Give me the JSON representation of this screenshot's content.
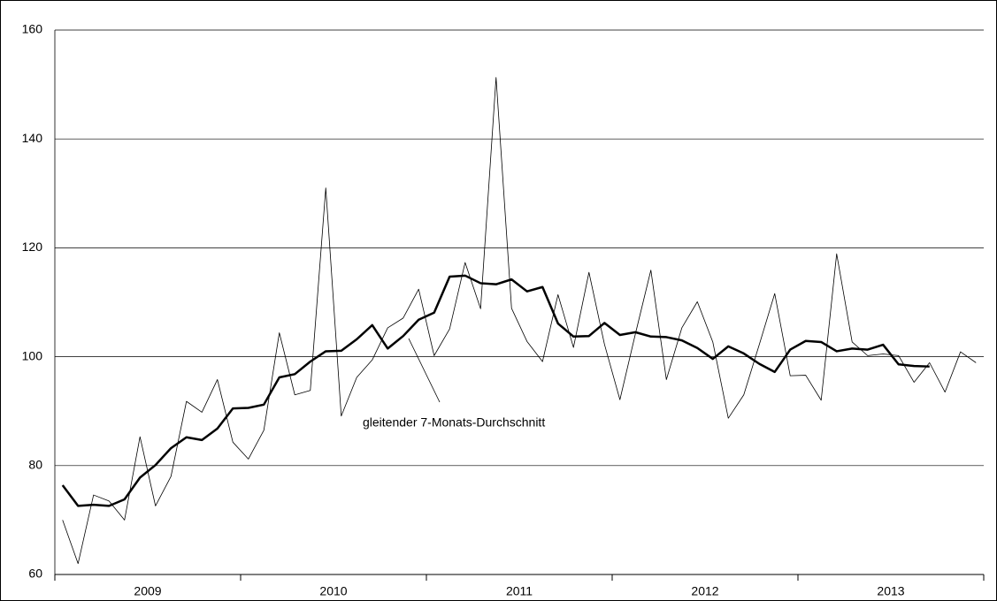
{
  "chart_data": {
    "type": "line",
    "categories": [
      "2009",
      null,
      null,
      null,
      null,
      null,
      null,
      null,
      null,
      null,
      null,
      null,
      "2010",
      null,
      null,
      null,
      null,
      null,
      null,
      null,
      null,
      null,
      null,
      null,
      "2011",
      null,
      null,
      null,
      null,
      null,
      null,
      null,
      null,
      null,
      null,
      null,
      "2012",
      null,
      null,
      null,
      null,
      null,
      null,
      null,
      null,
      null,
      null,
      null,
      "2013",
      null,
      null,
      null,
      null,
      null,
      null,
      null,
      null,
      null,
      null,
      null
    ],
    "series": [
      {
        "color": "#000000",
        "width": 0.8,
        "values": [
          70,
          62,
          74.6,
          73.5,
          70,
          85.3,
          72.6,
          78,
          91.8,
          89.8,
          95.8,
          84.3,
          81.2,
          86.5,
          104.4,
          93,
          93.8,
          131,
          89.1,
          96.2,
          99.4,
          105.3,
          107.1,
          112.4,
          100.2,
          105.1,
          117.3,
          108.8,
          151.3,
          108.9,
          102.8,
          99.1,
          111.4,
          101.7,
          115.5,
          102.3,
          92.1,
          104.2,
          115.9,
          95.8,
          105.3,
          110.1,
          102.7,
          88.7,
          93,
          102.2,
          111.6,
          96.5,
          96.6,
          92,
          118.9,
          102.7,
          100.2,
          100.5,
          100.2,
          95.3,
          98.9,
          93.5,
          100.9,
          98.9
        ]
      },
      {
        "color": "#000000",
        "width": 2.5,
        "values": [
          76.4,
          72.6,
          72.8,
          72.6,
          73.8,
          77.8,
          80.1,
          83.2,
          85.2,
          84.7,
          86.8,
          90.5,
          90.6,
          91.2,
          96.2,
          96.8,
          99.1,
          101,
          101.1,
          103.2,
          105.8,
          101.5,
          103.8,
          106.8,
          108.1,
          114.7,
          114.9,
          113.5,
          113.3,
          114.2,
          112,
          112.8,
          106.1,
          103.7,
          103.8,
          106.2,
          104,
          104.5,
          103.7,
          103.6,
          103,
          101.6,
          99.6,
          101.9,
          100.6,
          98.7,
          97.2,
          101.3,
          102.9,
          102.7,
          101,
          101.5,
          101.3,
          102.2,
          98.6,
          98.3,
          98.2,
          null,
          null,
          null
        ]
      }
    ],
    "annotation": "gleitender 7-Monats-Durchschnitt",
    "ylim": [
      60,
      160
    ],
    "yticks": [
      60,
      80,
      100,
      120,
      140,
      160
    ],
    "grid": true
  }
}
